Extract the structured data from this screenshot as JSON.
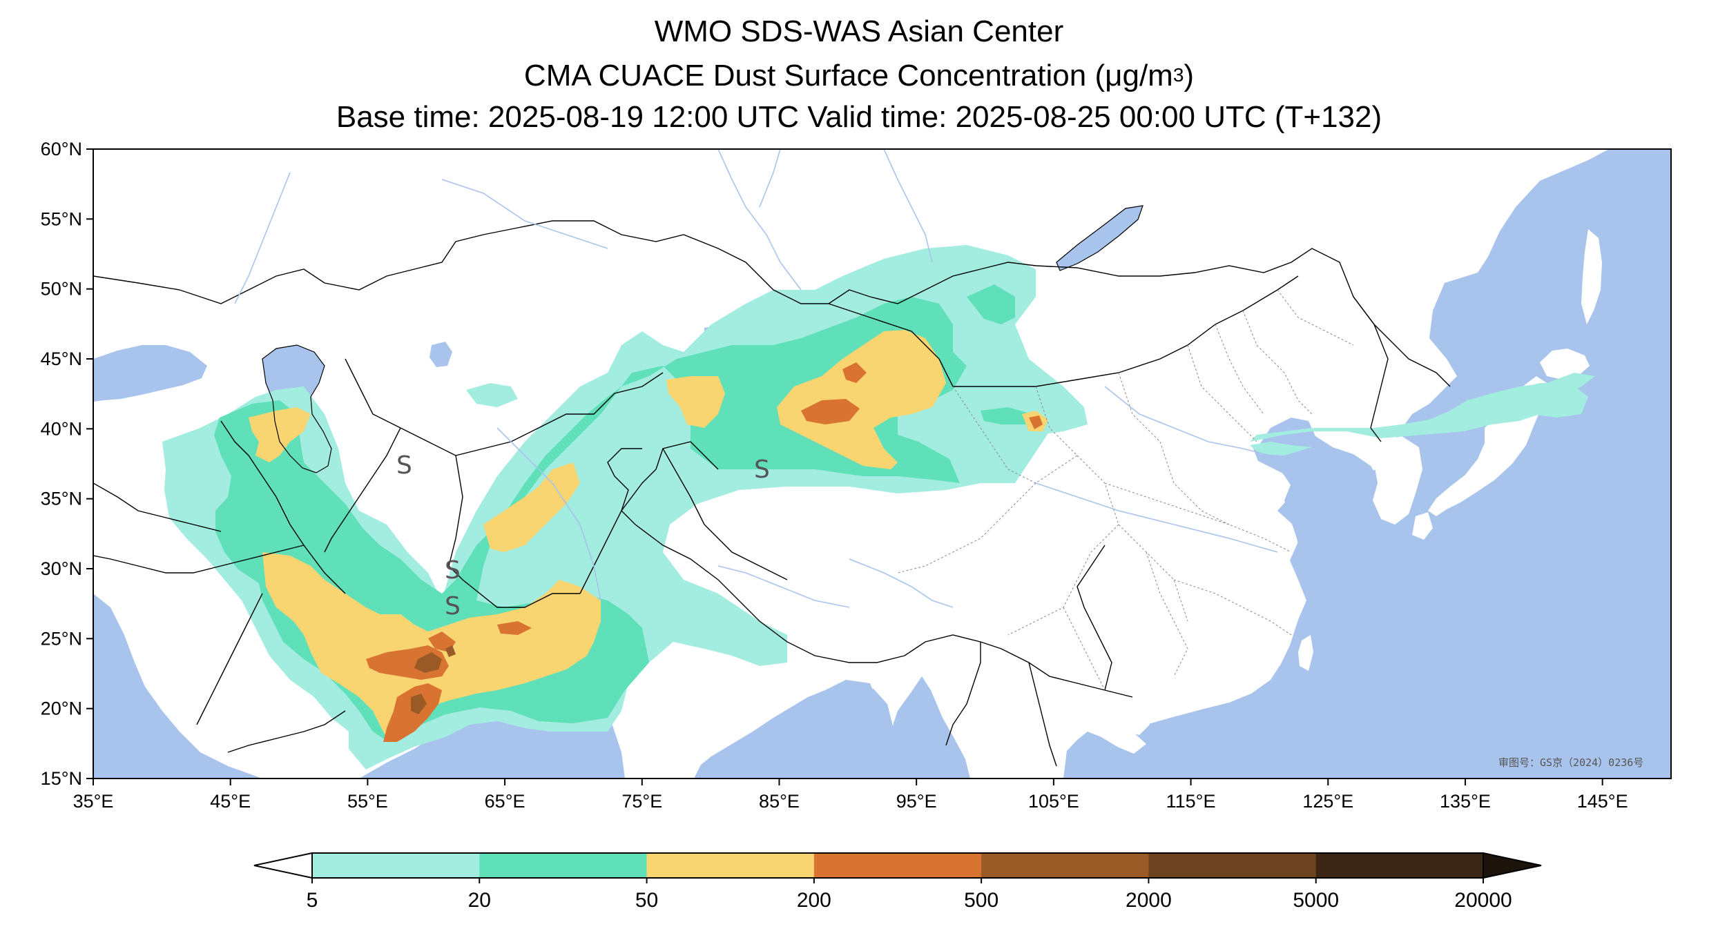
{
  "titles": {
    "line1": "WMO SDS-WAS Asian Center",
    "line2_pre": "CMA CUACE Dust Surface Concentration (",
    "line2_mu": "μ",
    "line2_unit": "g/m",
    "line2_sup": "3",
    "line2_post": ")",
    "line3": "Base time: 2025-08-19 12:00 UTC Valid time: 2025-08-25 00:00 UTC (T+132)"
  },
  "map": {
    "lon_range": [
      35,
      150
    ],
    "lat_range": [
      15,
      60
    ],
    "lon_ticks": [
      35,
      45,
      55,
      65,
      75,
      85,
      95,
      105,
      115,
      125,
      135,
      145
    ],
    "lat_ticks": [
      15,
      20,
      25,
      30,
      35,
      40,
      45,
      50,
      55,
      60
    ],
    "lon_tick_labels": [
      "35°E",
      "45°E",
      "55°E",
      "65°E",
      "75°E",
      "85°E",
      "95°E",
      "105°E",
      "115°E",
      "125°E",
      "135°E",
      "145°E"
    ],
    "lat_tick_labels": [
      "15°N",
      "20°N",
      "25°N",
      "30°N",
      "35°N",
      "40°N",
      "45°N",
      "50°N",
      "55°N",
      "60°N"
    ],
    "ocean_color": "#a9c4ec",
    "land_color": "#ffffff",
    "approval_text": "审图号：GS京（2024）0236号"
  },
  "colorbar": {
    "levels": [
      "5",
      "20",
      "50",
      "200",
      "500",
      "2000",
      "5000",
      "20000"
    ],
    "colors": [
      "#a3ece0",
      "#5fe0b8",
      "#f9d572",
      "#d97331",
      "#9a5a25",
      "#6b4320",
      "#3b2514"
    ],
    "under_color": "#ffffff",
    "over_color": "#1c130b"
  }
}
